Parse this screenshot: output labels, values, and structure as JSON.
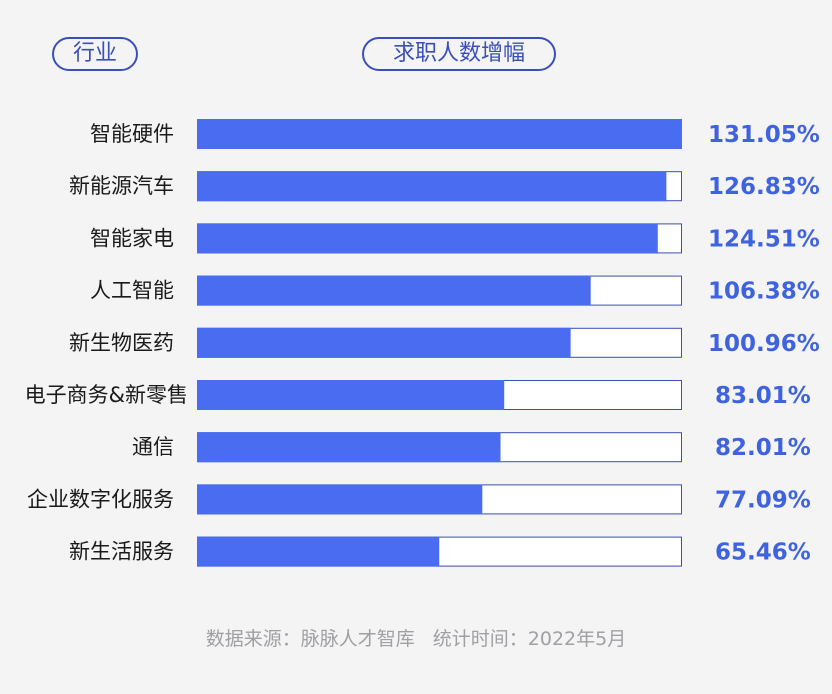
{
  "headers": {
    "category": "行业",
    "value": "求职人数增幅"
  },
  "footer": {
    "source": "数据来源：脉脉人才智库",
    "time": "统计时间：2022年5月"
  },
  "colors": {
    "bar": "#4a6cf0",
    "track_border": "#3a4fb8",
    "value_text": "#3f63de"
  },
  "chart_data": {
    "type": "bar",
    "orientation": "horizontal",
    "title": "",
    "xlabel": "",
    "ylabel": "",
    "categories": [
      "智能硬件",
      "新能源汽车",
      "智能家电",
      "人工智能",
      "新生物医药",
      "电子商务&新零售",
      "通信",
      "企业数字化服务",
      "新生活服务"
    ],
    "values": [
      131.05,
      126.83,
      124.51,
      106.38,
      100.96,
      83.01,
      82.01,
      77.09,
      65.46
    ],
    "value_labels": [
      "131.05%",
      "126.83%",
      "124.51%",
      "106.38%",
      "100.96%",
      "83.01%",
      "82.01%",
      "77.09%",
      "65.46%"
    ],
    "unit": "%",
    "xlim": [
      0,
      131.05
    ],
    "grid": false,
    "legend": "none"
  }
}
